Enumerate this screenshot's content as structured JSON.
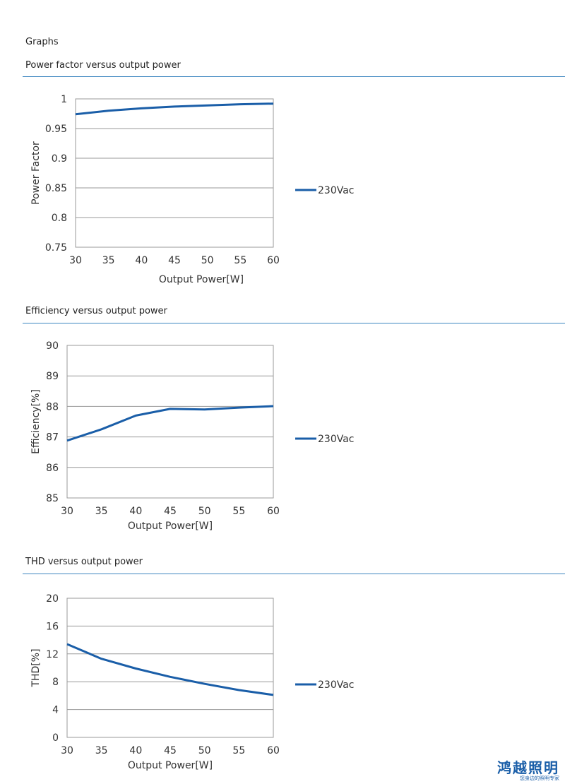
{
  "page": {
    "section_title": "Graphs",
    "logo_main": "鸿越照明",
    "logo_sub": "您身边的照明专家"
  },
  "headings": [
    "Power factor versus output power",
    "Efficiency versus output power",
    "THD versus output power"
  ],
  "colors": {
    "series": "#1a5ea8",
    "rule": "#3d86c0",
    "grid": "#999999"
  },
  "chart_data": [
    {
      "type": "line",
      "title": "Power factor versus output power",
      "xlabel": "Output Power[W]",
      "ylabel": "Power Factor",
      "x": [
        30,
        35,
        40,
        45,
        50,
        55,
        60
      ],
      "xticks": [
        "30",
        "35",
        "40",
        "45",
        "50",
        "55",
        "60"
      ],
      "xlim": [
        30,
        60
      ],
      "ylim": [
        0.75,
        1
      ],
      "yticks": [
        "0.75",
        "0.8",
        "0.85",
        "0.9",
        "0.95",
        "1"
      ],
      "ytick_values": [
        0.75,
        0.8,
        0.85,
        0.9,
        0.95,
        1
      ],
      "series": [
        {
          "name": "230Vac",
          "values": [
            0.974,
            0.98,
            0.984,
            0.987,
            0.989,
            0.991,
            0.992
          ]
        }
      ],
      "grid": "horizontal",
      "legend": "right"
    },
    {
      "type": "line",
      "title": "Efficiency versus output power",
      "xlabel": "Output Power[W]",
      "ylabel": "Efficiency[%]",
      "x": [
        30,
        35,
        40,
        45,
        50,
        55,
        60
      ],
      "xticks": [
        "30",
        "35",
        "40",
        "45",
        "50",
        "55",
        "60"
      ],
      "xlim": [
        30,
        60
      ],
      "ylim": [
        85,
        90
      ],
      "yticks": [
        "85",
        "86",
        "87",
        "88",
        "89",
        "90"
      ],
      "ytick_values": [
        85,
        86,
        87,
        88,
        89,
        90
      ],
      "series": [
        {
          "name": "230Vac",
          "values": [
            86.88,
            87.25,
            87.7,
            87.92,
            87.9,
            87.96,
            88.01
          ]
        }
      ],
      "grid": "horizontal",
      "legend": "right"
    },
    {
      "type": "line",
      "title": "THD versus output power",
      "xlabel": "Output Power[W]",
      "ylabel": "THD[%]",
      "x": [
        30,
        35,
        40,
        45,
        50,
        55,
        60
      ],
      "xticks": [
        "30",
        "35",
        "40",
        "45",
        "50",
        "55",
        "60"
      ],
      "xlim": [
        30,
        60
      ],
      "ylim": [
        0,
        20
      ],
      "yticks": [
        "0",
        "4",
        "8",
        "12",
        "16",
        "20"
      ],
      "ytick_values": [
        0,
        4,
        8,
        12,
        16,
        20
      ],
      "series": [
        {
          "name": "230Vac",
          "values": [
            13.4,
            11.3,
            9.9,
            8.7,
            7.7,
            6.8,
            6.1
          ]
        }
      ],
      "grid": "horizontal",
      "legend": "right"
    }
  ]
}
